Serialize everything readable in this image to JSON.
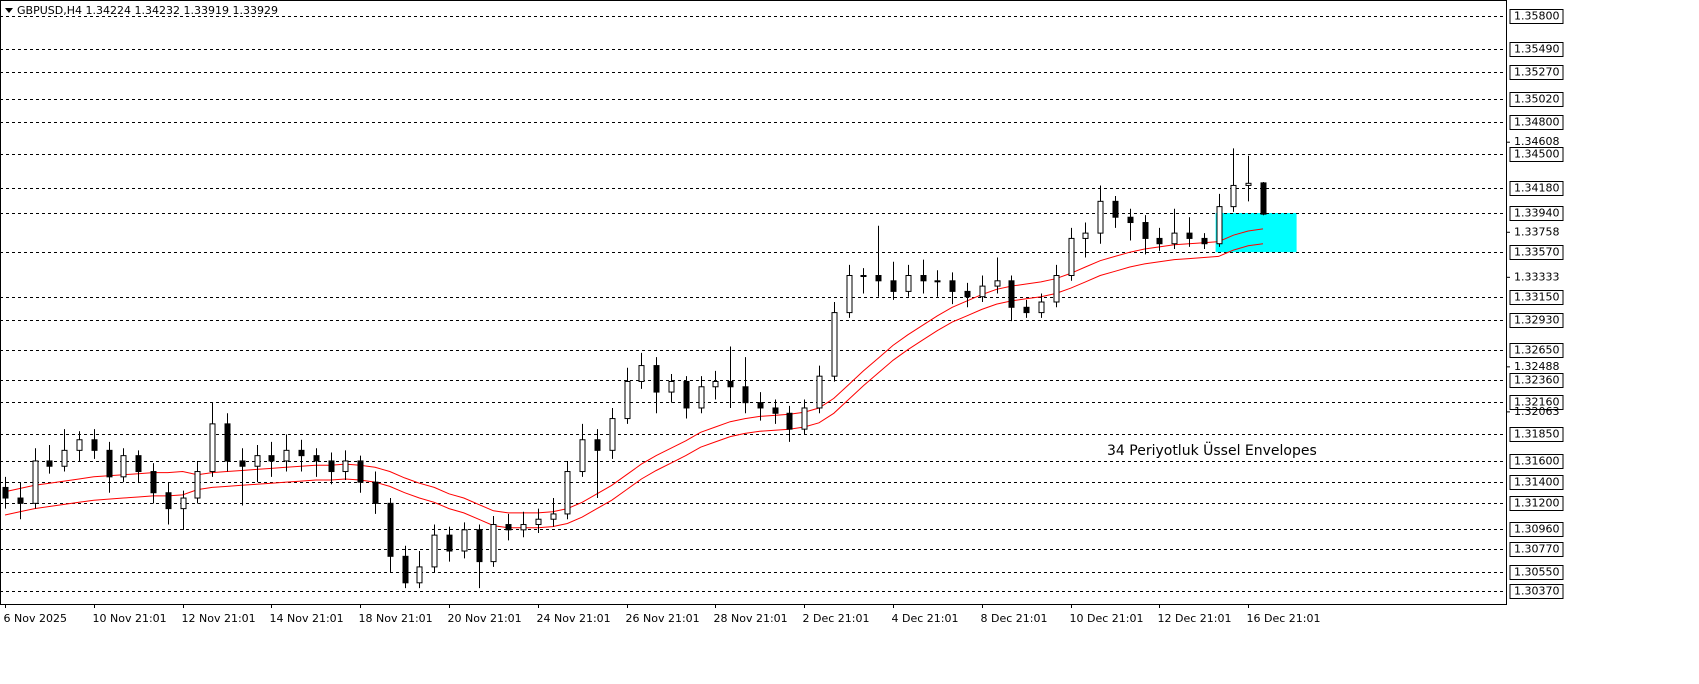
{
  "chart_data": {
    "type": "candlestick",
    "symbol": "GBPUSD,H4",
    "annotation": "34  Periyotluk Üssel Envelopes",
    "annotation_color": "#f26522",
    "bull_color": "#ffffff",
    "bear_color": "#000000",
    "ylim": [
      1.3025,
      1.3595
    ],
    "yticks": [
      1.34608,
      1.33758,
      1.33333,
      1.32488,
      1.32063
    ],
    "levels": [
      {
        "value": 1.358,
        "label": "1.35800"
      },
      {
        "value": 1.3549,
        "label": "1.35490"
      },
      {
        "value": 1.3527,
        "label": "1.35270"
      },
      {
        "value": 1.3502,
        "label": "1.35020"
      },
      {
        "value": 1.348,
        "label": "1.34800"
      },
      {
        "value": 1.345,
        "label": "1.34500"
      },
      {
        "value": 1.3418,
        "label": "1.34180"
      },
      {
        "value": 1.3394,
        "label": "1.33940"
      },
      {
        "value": 1.3357,
        "label": "1.33570"
      },
      {
        "value": 1.3315,
        "label": "1.33150"
      },
      {
        "value": 1.3293,
        "label": "1.32930"
      },
      {
        "value": 1.3265,
        "label": "1.32650"
      },
      {
        "value": 1.3236,
        "label": "1.32360"
      },
      {
        "value": 1.3216,
        "label": "1.32160"
      },
      {
        "value": 1.3185,
        "label": "1.31850"
      },
      {
        "value": 1.316,
        "label": "1.31600"
      },
      {
        "value": 1.314,
        "label": "1.31400"
      },
      {
        "value": 1.312,
        "label": "1.31200"
      },
      {
        "value": 1.3096,
        "label": "1.30960"
      },
      {
        "value": 1.3077,
        "label": "1.30770"
      },
      {
        "value": 1.3055,
        "label": "1.30550"
      },
      {
        "value": 1.3037,
        "label": "1.30370"
      }
    ],
    "zone": {
      "top": 1.3394,
      "bottom": 1.3357,
      "color": "#00ffff"
    },
    "categories": [
      "6 Nov 2025",
      null,
      null,
      null,
      null,
      null,
      "10 Nov 21:01",
      null,
      null,
      null,
      null,
      null,
      "12 Nov 21:01",
      null,
      null,
      null,
      null,
      null,
      "14 Nov 21:01",
      null,
      null,
      null,
      null,
      null,
      "18 Nov 21:01",
      null,
      null,
      null,
      null,
      null,
      "20 Nov 21:01",
      null,
      null,
      null,
      null,
      null,
      "24 Nov 21:01",
      null,
      null,
      null,
      null,
      null,
      "26 Nov 21:01",
      null,
      null,
      null,
      null,
      null,
      "28 Nov 21:01",
      null,
      null,
      null,
      null,
      null,
      "2 Dec 21:01",
      null,
      null,
      null,
      null,
      null,
      "4 Dec 21:01",
      null,
      null,
      null,
      null,
      null,
      "8 Dec 21:01",
      null,
      null,
      null,
      null,
      null,
      "10 Dec 21:01",
      null,
      null,
      null,
      null,
      null,
      "12 Dec 21:01",
      null,
      null,
      null,
      null,
      null,
      "16 Dec 21:01",
      null
    ],
    "values": [
      [
        1.3135,
        1.3145,
        1.3115,
        1.3125
      ],
      [
        1.3125,
        1.314,
        1.3105,
        1.312
      ],
      [
        1.312,
        1.3172,
        1.3115,
        1.316
      ],
      [
        1.316,
        1.3175,
        1.3148,
        1.3155
      ],
      [
        1.3155,
        1.319,
        1.315,
        1.317
      ],
      [
        1.317,
        1.3188,
        1.316,
        1.318
      ],
      [
        1.318,
        1.319,
        1.3162,
        1.317
      ],
      [
        1.317,
        1.3178,
        1.313,
        1.3145
      ],
      [
        1.3145,
        1.3172,
        1.314,
        1.3165
      ],
      [
        1.3165,
        1.317,
        1.314,
        1.315
      ],
      [
        1.315,
        1.3158,
        1.312,
        1.313
      ],
      [
        1.313,
        1.314,
        1.31,
        1.3115
      ],
      [
        1.3115,
        1.3132,
        1.3095,
        1.3125
      ],
      [
        1.3125,
        1.316,
        1.312,
        1.315
      ],
      [
        1.315,
        1.3215,
        1.3145,
        1.3195
      ],
      [
        1.3195,
        1.3205,
        1.315,
        1.316
      ],
      [
        1.316,
        1.3172,
        1.3118,
        1.3155
      ],
      [
        1.3155,
        1.3175,
        1.314,
        1.3165
      ],
      [
        1.3165,
        1.3178,
        1.3145,
        1.316
      ],
      [
        1.316,
        1.3185,
        1.315,
        1.317
      ],
      [
        1.317,
        1.318,
        1.315,
        1.3165
      ],
      [
        1.3165,
        1.3172,
        1.3145,
        1.316
      ],
      [
        1.316,
        1.3168,
        1.3138,
        1.315
      ],
      [
        1.315,
        1.317,
        1.3142,
        1.316
      ],
      [
        1.316,
        1.3165,
        1.313,
        1.314
      ],
      [
        1.314,
        1.315,
        1.311,
        1.312
      ],
      [
        1.312,
        1.3125,
        1.3055,
        1.307
      ],
      [
        1.307,
        1.308,
        1.304,
        1.3045
      ],
      [
        1.3045,
        1.3075,
        1.304,
        1.306
      ],
      [
        1.306,
        1.31,
        1.3055,
        1.309
      ],
      [
        1.309,
        1.3098,
        1.3065,
        1.3075
      ],
      [
        1.3075,
        1.3102,
        1.3068,
        1.3095
      ],
      [
        1.3095,
        1.31,
        1.304,
        1.3065
      ],
      [
        1.3065,
        1.3108,
        1.306,
        1.31
      ],
      [
        1.31,
        1.311,
        1.3085,
        1.3095
      ],
      [
        1.3095,
        1.3112,
        1.3088,
        1.31
      ],
      [
        1.31,
        1.3115,
        1.3092,
        1.3105
      ],
      [
        1.3105,
        1.3125,
        1.3098,
        1.311
      ],
      [
        1.311,
        1.316,
        1.3105,
        1.315
      ],
      [
        1.315,
        1.3195,
        1.3145,
        1.318
      ],
      [
        1.318,
        1.319,
        1.3125,
        1.317
      ],
      [
        1.317,
        1.321,
        1.3162,
        1.32
      ],
      [
        1.32,
        1.3248,
        1.3195,
        1.3235
      ],
      [
        1.3235,
        1.3262,
        1.3228,
        1.325
      ],
      [
        1.325,
        1.3258,
        1.3205,
        1.3225
      ],
      [
        1.3225,
        1.3242,
        1.3215,
        1.3235
      ],
      [
        1.3235,
        1.324,
        1.32,
        1.321
      ],
      [
        1.321,
        1.324,
        1.3205,
        1.323
      ],
      [
        1.323,
        1.3245,
        1.3218,
        1.3235
      ],
      [
        1.3235,
        1.3268,
        1.321,
        1.323
      ],
      [
        1.323,
        1.3258,
        1.3205,
        1.3215
      ],
      [
        1.3215,
        1.3225,
        1.3198,
        1.321
      ],
      [
        1.321,
        1.3218,
        1.3195,
        1.3205
      ],
      [
        1.3205,
        1.3212,
        1.3178,
        1.319
      ],
      [
        1.319,
        1.3218,
        1.3185,
        1.321
      ],
      [
        1.321,
        1.325,
        1.3205,
        1.324
      ],
      [
        1.324,
        1.331,
        1.3235,
        1.33
      ],
      [
        1.33,
        1.3345,
        1.3295,
        1.3335
      ],
      [
        1.3335,
        1.3342,
        1.3318,
        1.3335
      ],
      [
        1.3335,
        1.3382,
        1.3315,
        1.333
      ],
      [
        1.333,
        1.3348,
        1.3312,
        1.332
      ],
      [
        1.332,
        1.3345,
        1.3315,
        1.3335
      ],
      [
        1.3335,
        1.335,
        1.3318,
        1.333
      ],
      [
        1.333,
        1.334,
        1.3315,
        1.333
      ],
      [
        1.333,
        1.3338,
        1.3308,
        1.332
      ],
      [
        1.332,
        1.3328,
        1.3305,
        1.3315
      ],
      [
        1.3315,
        1.3335,
        1.331,
        1.3325
      ],
      [
        1.3325,
        1.3352,
        1.3318,
        1.333
      ],
      [
        1.333,
        1.3335,
        1.3292,
        1.3305
      ],
      [
        1.3305,
        1.3312,
        1.3295,
        1.33
      ],
      [
        1.33,
        1.3318,
        1.3295,
        1.331
      ],
      [
        1.331,
        1.3345,
        1.3305,
        1.3335
      ],
      [
        1.3335,
        1.338,
        1.333,
        1.337
      ],
      [
        1.337,
        1.3385,
        1.3352,
        1.3375
      ],
      [
        1.3375,
        1.342,
        1.3365,
        1.3405
      ],
      [
        1.3405,
        1.341,
        1.338,
        1.339
      ],
      [
        1.339,
        1.3398,
        1.3368,
        1.3385
      ],
      [
        1.3385,
        1.3392,
        1.3355,
        1.337
      ],
      [
        1.337,
        1.338,
        1.3358,
        1.3365
      ],
      [
        1.3365,
        1.3398,
        1.336,
        1.3375
      ],
      [
        1.3375,
        1.339,
        1.3362,
        1.337
      ],
      [
        1.337,
        1.3375,
        1.336,
        1.3365
      ],
      [
        1.3365,
        1.3412,
        1.3362,
        1.34
      ],
      [
        1.34,
        1.3455,
        1.3395,
        1.342
      ],
      [
        1.342,
        1.3448,
        1.3405,
        1.3422
      ],
      [
        1.34224,
        1.34232,
        1.33919,
        1.33929
      ]
    ],
    "envelopes": {
      "color": "#ff0000",
      "upper": [
        1.3131,
        1.3134,
        1.3137,
        1.3139,
        1.3141,
        1.3143,
        1.3145,
        1.3146,
        1.3147,
        1.3148,
        1.3149,
        1.3149,
        1.315,
        1.3147,
        1.3149,
        1.315,
        1.3151,
        1.3152,
        1.3153,
        1.3154,
        1.3155,
        1.3156,
        1.3156,
        1.3157,
        1.3156,
        1.3154,
        1.315,
        1.3144,
        1.3139,
        1.3135,
        1.3129,
        1.3125,
        1.3119,
        1.3113,
        1.3111,
        1.3111,
        1.3111,
        1.3112,
        1.3115,
        1.3121,
        1.3129,
        1.3137,
        1.3147,
        1.3157,
        1.3165,
        1.3172,
        1.3179,
        1.3187,
        1.3192,
        1.3197,
        1.32,
        1.3202,
        1.3203,
        1.3204,
        1.3206,
        1.321,
        1.3219,
        1.3232,
        1.3245,
        1.3257,
        1.3269,
        1.3279,
        1.3288,
        1.3297,
        1.3305,
        1.3311,
        1.3317,
        1.3322,
        1.3325,
        1.3327,
        1.3329,
        1.3332,
        1.3337,
        1.3343,
        1.3349,
        1.3353,
        1.3357,
        1.336,
        1.3362,
        1.3364,
        1.3365,
        1.3366,
        1.3367,
        1.3373,
        1.3377,
        1.3379
      ],
      "lower": [
        1.3109,
        1.3112,
        1.3115,
        1.3117,
        1.3119,
        1.3121,
        1.3123,
        1.3124,
        1.3125,
        1.3126,
        1.3127,
        1.3127,
        1.3128,
        1.3133,
        1.3135,
        1.3136,
        1.3137,
        1.3138,
        1.3139,
        1.314,
        1.3141,
        1.3142,
        1.3142,
        1.3143,
        1.3142,
        1.314,
        1.3136,
        1.313,
        1.3125,
        1.3121,
        1.3115,
        1.3111,
        1.3105,
        1.3099,
        1.3097,
        1.3097,
        1.3097,
        1.3098,
        1.3101,
        1.3107,
        1.3115,
        1.3123,
        1.3133,
        1.3143,
        1.3151,
        1.3158,
        1.3165,
        1.3173,
        1.3178,
        1.3183,
        1.3186,
        1.3188,
        1.3189,
        1.319,
        1.3192,
        1.3196,
        1.3205,
        1.3218,
        1.3231,
        1.3243,
        1.3255,
        1.3265,
        1.3274,
        1.3283,
        1.3291,
        1.3297,
        1.3303,
        1.3308,
        1.3311,
        1.3313,
        1.3315,
        1.3318,
        1.3323,
        1.3329,
        1.3335,
        1.3339,
        1.3343,
        1.3346,
        1.3348,
        1.335,
        1.3351,
        1.3352,
        1.3353,
        1.3359,
        1.3363,
        1.3365
      ]
    }
  }
}
